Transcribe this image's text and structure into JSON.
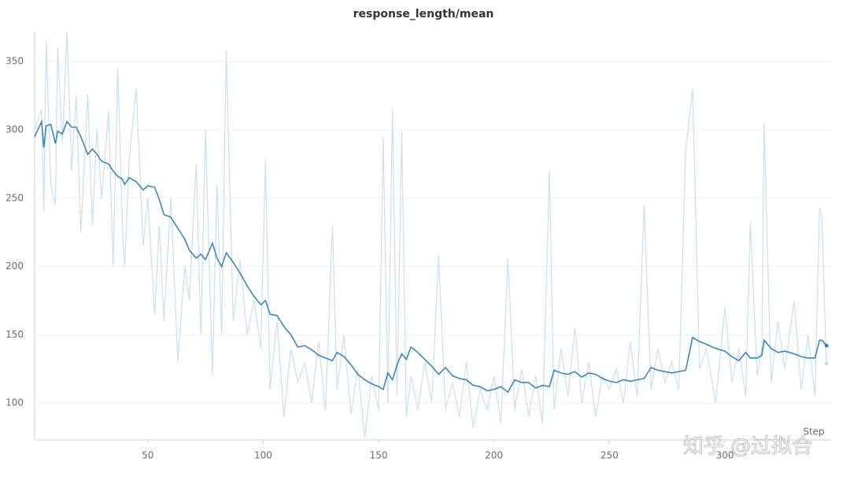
{
  "chart_data": {
    "type": "line",
    "title": "response_length/mean",
    "x_label": "Step",
    "watermark": "知乎 @过拟合",
    "x": [
      1,
      4,
      5,
      6,
      8,
      10,
      11,
      13,
      15,
      17,
      19,
      21,
      24,
      26,
      28,
      30,
      33,
      35,
      37,
      39,
      40,
      42,
      45,
      48,
      50,
      53,
      55,
      57,
      60,
      63,
      66,
      68,
      71,
      73,
      75,
      78,
      80,
      82,
      84,
      87,
      90,
      93,
      96,
      99,
      101,
      103,
      106,
      109,
      112,
      115,
      118,
      121,
      124,
      127,
      130,
      132,
      135,
      138,
      141,
      144,
      147,
      150,
      152,
      154,
      156,
      158,
      160,
      162,
      164,
      167,
      170,
      173,
      176,
      179,
      182,
      185,
      188,
      191,
      194,
      197,
      200,
      203,
      206,
      209,
      212,
      215,
      218,
      221,
      224,
      226,
      229,
      232,
      235,
      238,
      241,
      244,
      247,
      250,
      253,
      256,
      259,
      262,
      265,
      268,
      271,
      274,
      277,
      280,
      283,
      286,
      289,
      292,
      296,
      300,
      303,
      306,
      309,
      311,
      314,
      316,
      317,
      320,
      323,
      326,
      330,
      333,
      336,
      339,
      341,
      342,
      344
    ],
    "series": [
      {
        "color": "#c9dff0",
        "values": [
          300,
          315,
          240,
          365,
          260,
          245,
          360,
          290,
          372,
          270,
          325,
          225,
          326,
          230,
          300,
          250,
          314,
          200,
          345,
          230,
          200,
          280,
          330,
          215,
          250,
          165,
          230,
          160,
          250,
          130,
          200,
          175,
          275,
          150,
          300,
          120,
          260,
          150,
          358,
          160,
          205,
          150,
          175,
          140,
          278,
          110,
          160,
          90,
          140,
          115,
          130,
          100,
          145,
          95,
          230,
          110,
          150,
          92,
          125,
          75,
          120,
          95,
          295,
          100,
          316,
          105,
          298,
          90,
          120,
          95,
          130,
          100,
          208,
          95,
          115,
          90,
          130,
          82,
          110,
          95,
          120,
          85,
          206,
          95,
          125,
          90,
          120,
          85,
          270,
          95,
          140,
          105,
          155,
          100,
          130,
          90,
          120,
          110,
          125,
          100,
          145,
          105,
          245,
          110,
          140,
          115,
          130,
          110,
          285,
          330,
          125,
          140,
          100,
          170,
          115,
          140,
          105,
          232,
          120,
          140,
          305,
          115,
          160,
          125,
          175,
          110,
          150,
          105,
          243,
          235,
          129
        ]
      },
      {
        "color": "#3a87b8",
        "values": [
          295,
          306,
          287,
          303,
          304,
          290,
          299,
          297,
          306,
          302,
          302,
          295,
          282,
          286,
          282,
          277,
          275,
          270,
          266,
          264,
          260,
          265,
          262,
          256,
          259,
          258,
          249,
          238,
          236,
          228,
          220,
          212,
          206,
          209,
          205,
          217,
          206,
          200,
          210,
          203,
          195,
          186,
          178,
          172,
          175,
          165,
          164,
          156,
          150,
          141,
          142,
          139,
          135,
          133,
          131,
          137,
          134,
          128,
          121,
          117,
          114,
          112,
          110,
          122,
          117,
          128,
          136,
          132,
          141,
          137,
          132,
          127,
          121,
          126,
          120,
          118,
          117,
          113,
          112,
          109,
          110,
          112,
          108,
          117,
          115,
          115,
          111,
          113,
          112,
          124,
          122,
          121,
          123,
          119,
          122,
          121,
          118,
          116,
          115,
          117,
          116,
          117,
          118,
          126,
          124,
          123,
          122,
          123,
          124,
          148,
          145,
          143,
          140,
          138,
          134,
          131,
          137,
          133,
          133,
          135,
          146,
          140,
          137,
          138,
          136,
          134,
          133,
          133,
          146,
          146,
          142
        ]
      }
    ],
    "xlim": [
      1,
      346
    ],
    "ylim": [
      73,
      372
    ],
    "xticks": [
      50,
      100,
      150,
      200,
      250,
      300
    ],
    "yticks": [
      100,
      150,
      200,
      250,
      300,
      350
    ],
    "grid": true
  }
}
